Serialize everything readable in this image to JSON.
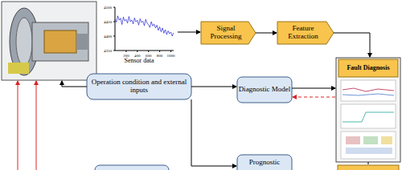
{
  "nodes": {
    "signal_processing": "Signal Processing",
    "feature_extraction": "Feature Extraction",
    "fault_diagnosis": "Fault Diagnosis",
    "operation": "Operation condition and external inputs",
    "diagnostic_model": "Diagnostic Model",
    "prognostic": "Prognostic"
  },
  "chart_data": {
    "type": "line",
    "xlabel": "Sensor data",
    "color": "#0000cc",
    "x": [
      0,
      25,
      50,
      75,
      100,
      125,
      150,
      175,
      200,
      225,
      250,
      275,
      300,
      325,
      350,
      375,
      400,
      425,
      450,
      475,
      500,
      525,
      550,
      575,
      600,
      625,
      650,
      675,
      700,
      725,
      750,
      775,
      800,
      825,
      850,
      875,
      900,
      925,
      950,
      975,
      1000,
      1025,
      1050
    ],
    "values": [
      4460,
      4448,
      4470,
      4455,
      4462,
      4440,
      4466,
      4452,
      4458,
      4445,
      4468,
      4450,
      4456,
      4442,
      4463,
      4449,
      4455,
      4438,
      4460,
      4447,
      4452,
      4436,
      4458,
      4444,
      4440,
      4430,
      4450,
      4435,
      4442,
      4428,
      4438,
      4420,
      4432,
      4415,
      4428,
      4410,
      4422,
      4405,
      4418,
      4408,
      4414,
      4400,
      4412
    ],
    "xlim": [
      0,
      1050
    ],
    "ylim": [
      4350,
      4500
    ],
    "xticks": [
      200,
      400,
      600,
      800,
      1000
    ],
    "yticks": [
      4350,
      4400,
      4450,
      4500
    ]
  }
}
